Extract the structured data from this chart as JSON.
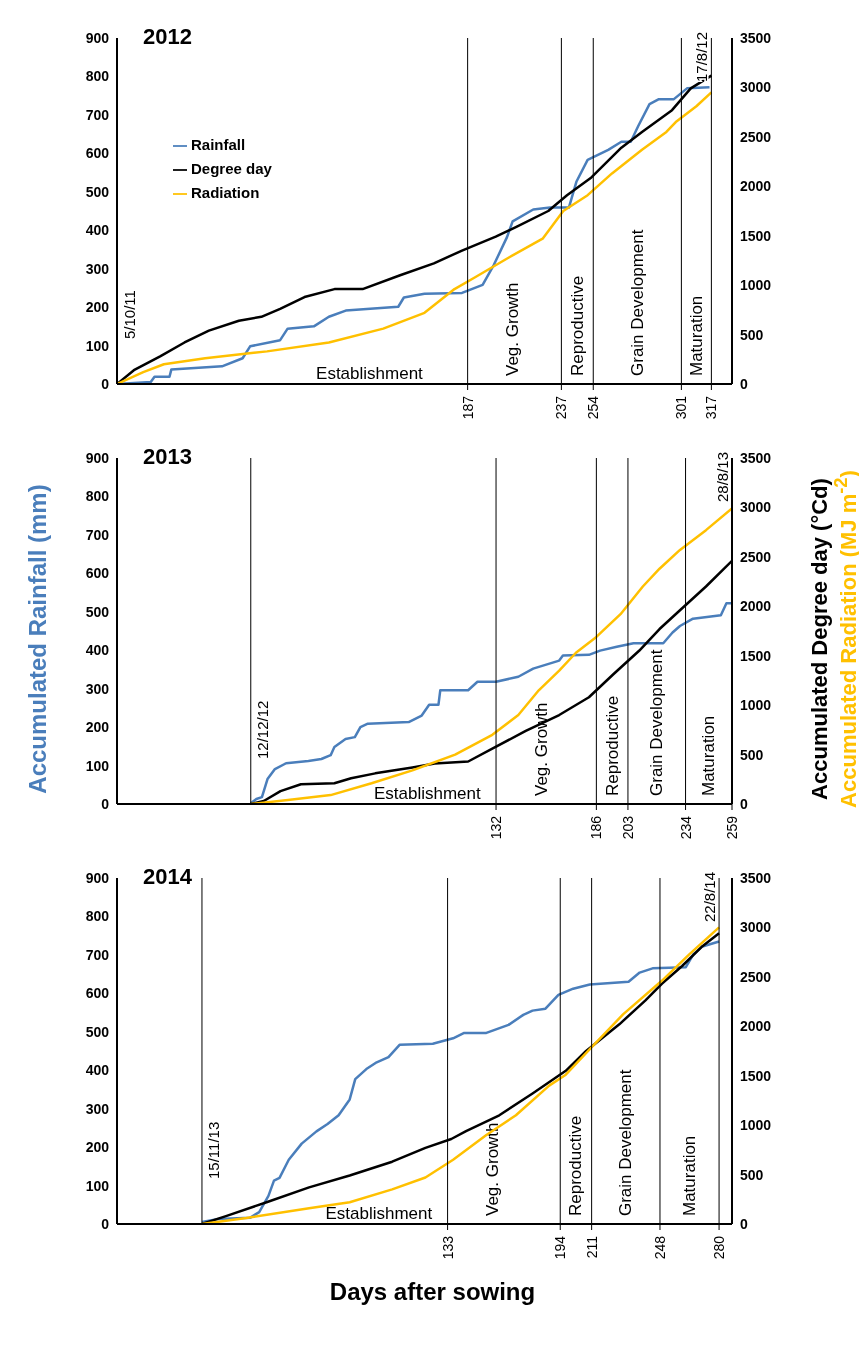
{
  "chart_data": [
    {
      "type": "line",
      "title": "2012",
      "xlim": [
        0,
        328
      ],
      "xticks": [
        187,
        237,
        254,
        301,
        317
      ],
      "ylim": [
        0,
        900
      ],
      "yticks": [
        0,
        100,
        200,
        300,
        400,
        500,
        600,
        700,
        800,
        900
      ],
      "y2lim": [
        0,
        3500
      ],
      "y2ticks": [
        0,
        500,
        1000,
        1500,
        2000,
        2500,
        3000,
        3500
      ],
      "legend": "top left",
      "series": [
        {
          "name": "Rainfall",
          "color": "#4a7ebb",
          "x": [
            0,
            18,
            20,
            28,
            29,
            56,
            67,
            71,
            87,
            91,
            105,
            113,
            122,
            150,
            153,
            164,
            184,
            195,
            201,
            208,
            211,
            222,
            231,
            241,
            245,
            251,
            262,
            269,
            274,
            278,
            284,
            289,
            297,
            304,
            316
          ],
          "values": [
            0,
            5,
            19,
            19,
            38,
            46,
            67,
            98,
            114,
            144,
            150,
            175,
            191,
            201,
            225,
            235,
            237,
            258,
            310,
            382,
            423,
            454,
            459,
            459,
            526,
            583,
            609,
            630,
            630,
            671,
            728,
            741,
            741,
            769,
            772
          ]
        },
        {
          "name": "Degree day",
          "color": "#000000",
          "axis": "y2",
          "x": [
            0,
            9,
            23,
            36,
            49,
            65,
            77,
            87,
            100,
            116,
            131,
            151,
            169,
            184,
            202,
            213,
            230,
            240,
            253,
            269,
            280,
            296,
            306,
            317
          ],
          "values": [
            0,
            140,
            280,
            420,
            540,
            640,
            680,
            760,
            880,
            960,
            960,
            1100,
            1220,
            1350,
            1490,
            1590,
            1750,
            1910,
            2090,
            2390,
            2550,
            2770,
            2990,
            3120
          ]
        },
        {
          "name": "Radiation",
          "color": "#ffc000",
          "axis": "y2",
          "x": [
            0,
            14,
            25,
            47,
            80,
            113,
            142,
            164,
            180,
            191,
            209,
            227,
            238,
            251,
            264,
            280,
            293,
            298,
            309,
            317
          ],
          "values": [
            0,
            120,
            200,
            260,
            330,
            420,
            560,
            720,
            960,
            1080,
            1280,
            1470,
            1750,
            1910,
            2130,
            2370,
            2550,
            2650,
            2810,
            2950
          ]
        }
      ],
      "ref_lines": [
        {
          "axis": "x",
          "value": 187
        },
        {
          "axis": "x",
          "value": 237
        },
        {
          "axis": "x",
          "value": 254
        },
        {
          "axis": "x",
          "value": 301
        },
        {
          "axis": "x",
          "value": 317
        }
      ],
      "annotations": [
        "5/10/11",
        "17/8/12",
        "Establishment",
        "Veg. Growth",
        "Reproductive",
        "Grain Development",
        "Maturation"
      ]
    },
    {
      "type": "line",
      "title": "2013",
      "ylabel": "Accumulated Rainfall (mm)",
      "y2label": "Accumulated Degree day (°Cd)",
      "xlim": [
        -72,
        259
      ],
      "xticks": [
        132,
        186,
        203,
        234,
        259
      ],
      "ylim": [
        0,
        900
      ],
      "yticks": [
        0,
        100,
        200,
        300,
        400,
        500,
        600,
        700,
        800,
        900
      ],
      "y2lim": [
        0,
        3500
      ],
      "y2ticks": [
        0,
        500,
        1000,
        1500,
        2000,
        2500,
        3000,
        3500
      ],
      "series": [
        {
          "color": "#4a7ebb",
          "x": [
            0,
            3,
            6,
            9,
            13,
            19,
            31,
            38,
            43,
            45,
            51,
            56,
            59,
            63,
            85,
            92,
            96,
            101,
            102,
            117,
            122,
            132,
            144,
            152,
            166,
            168,
            182,
            188,
            197,
            206,
            222,
            227,
            231,
            238,
            253,
            256,
            259
          ],
          "values": [
            2,
            13,
            18,
            65,
            91,
            106,
            112,
            117,
            127,
            148,
            169,
            174,
            200,
            209,
            213,
            230,
            258,
            258,
            296,
            296,
            318,
            318,
            331,
            352,
            373,
            386,
            388,
            399,
            409,
            418,
            418,
            446,
            463,
            482,
            491,
            522,
            522
          ]
        },
        {
          "color": "#000000",
          "axis": "y2",
          "x": [
            0,
            7,
            16,
            27,
            45,
            54,
            67,
            87,
            99,
            117,
            130,
            148,
            166,
            182,
            195,
            209,
            220,
            231,
            245,
            259
          ],
          "values": [
            0,
            30,
            130,
            200,
            210,
            260,
            310,
            370,
            410,
            430,
            560,
            740,
            900,
            1080,
            1310,
            1550,
            1770,
            1960,
            2200,
            2460
          ]
        },
        {
          "color": "#ffc000",
          "axis": "y2",
          "x": [
            0,
            20,
            43,
            65,
            87,
            110,
            130,
            144,
            155,
            166,
            175,
            186,
            199,
            211,
            220,
            231,
            245,
            259
          ],
          "values": [
            0,
            40,
            90,
            210,
            340,
            500,
            700,
            900,
            1150,
            1350,
            1530,
            1690,
            1920,
            2200,
            2380,
            2570,
            2770,
            2990
          ]
        }
      ],
      "ref_lines": [
        {
          "axis": "x",
          "value": 0
        },
        {
          "axis": "x",
          "value": 132
        },
        {
          "axis": "x",
          "value": 186
        },
        {
          "axis": "x",
          "value": 203
        },
        {
          "axis": "x",
          "value": 234
        }
      ],
      "annotations": [
        "12/12/12",
        "28/8/13",
        "Establishment",
        "Veg. Growth",
        "Reproductive",
        "Grain Development",
        "Maturation",
        "Accumulated Radiation (MJ m$^{-2}$)"
      ]
    },
    {
      "type": "line",
      "title": "2014",
      "xlabel": "Days after sowing",
      "xlim": [
        -46,
        287
      ],
      "xticks": [
        133,
        194,
        211,
        248,
        280
      ],
      "ylim": [
        0,
        900
      ],
      "yticks": [
        0,
        100,
        200,
        300,
        400,
        500,
        600,
        700,
        800,
        900
      ],
      "y2lim": [
        0,
        3500
      ],
      "y2ticks": [
        0,
        500,
        1000,
        1500,
        2000,
        2500,
        3000,
        3500
      ],
      "series": [
        {
          "color": "#4a7ebb",
          "x": [
            0,
            9,
            26,
            31,
            36,
            39,
            42,
            47,
            54,
            62,
            68,
            74,
            80,
            83,
            89,
            94,
            101,
            107,
            125,
            136,
            142,
            154,
            166,
            174,
            179,
            186,
            193,
            201,
            210,
            231,
            237,
            244,
            262,
            266,
            271,
            280
          ],
          "values": [
            5,
            13,
            16,
            31,
            73,
            113,
            120,
            167,
            209,
            241,
            260,
            283,
            324,
            377,
            403,
            419,
            434,
            466,
            469,
            483,
            497,
            497,
            518,
            544,
            555,
            560,
            596,
            612,
            623,
            630,
            654,
            665,
            668,
            701,
            722,
            735
          ]
        },
        {
          "color": "#000000",
          "axis": "y2",
          "x": [
            0,
            13,
            35,
            58,
            80,
            103,
            121,
            135,
            143,
            161,
            179,
            197,
            208,
            226,
            240,
            249,
            260,
            271,
            280
          ],
          "values": [
            0,
            80,
            220,
            370,
            490,
            630,
            770,
            860,
            940,
            1100,
            1320,
            1550,
            1750,
            2020,
            2260,
            2430,
            2610,
            2810,
            2940
          ]
        },
        {
          "color": "#ffc000",
          "axis": "y2",
          "x": [
            0,
            24,
            58,
            80,
            103,
            121,
            136,
            154,
            170,
            188,
            197,
            210,
            228,
            249,
            264,
            280
          ],
          "values": [
            0,
            60,
            160,
            220,
            350,
            470,
            650,
            900,
            1100,
            1400,
            1510,
            1770,
            2120,
            2460,
            2730,
            3000
          ]
        }
      ],
      "ref_lines": [
        {
          "axis": "x",
          "value": 0
        },
        {
          "axis": "x",
          "value": 133
        },
        {
          "axis": "x",
          "value": 194
        },
        {
          "axis": "x",
          "value": 211
        },
        {
          "axis": "x",
          "value": 248
        },
        {
          "axis": "x",
          "value": 280
        }
      ],
      "annotations": [
        "15/11/13",
        "22/8/14",
        "Establishment",
        "Veg. Growth",
        "Reproductive",
        "Grain Development",
        "Maturation"
      ]
    }
  ]
}
